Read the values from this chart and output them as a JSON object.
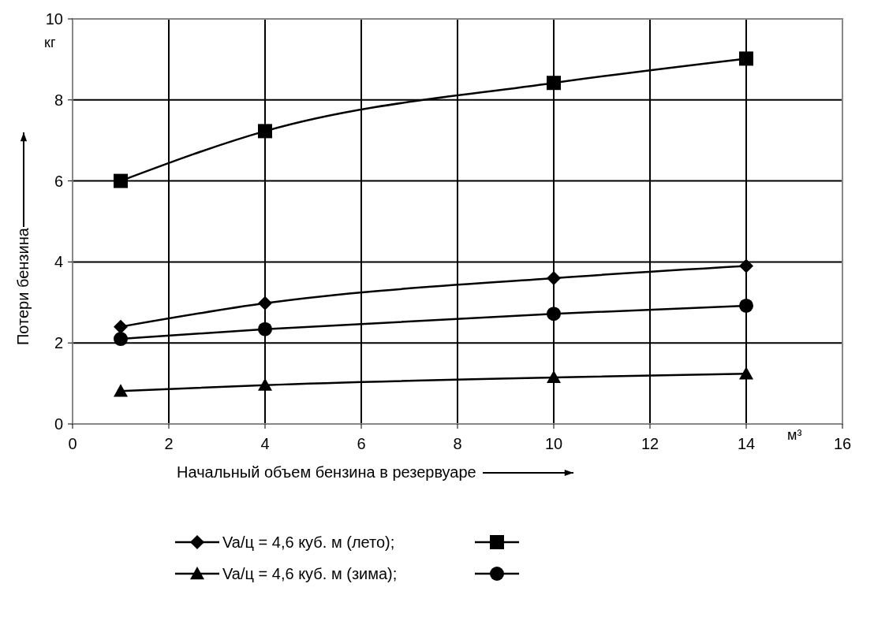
{
  "chart_data": {
    "type": "line",
    "xlabel": "Начальный объем бензина в резервуаре",
    "ylabel": "Потери бензина",
    "x": [
      1,
      4,
      10,
      14
    ],
    "series": [
      {
        "name": "Va/ц = 4,6 куб. м (лето);",
        "color": "#000000",
        "marker": "diamond",
        "values": [
          2.4,
          2.98,
          3.6,
          3.9
        ]
      },
      {
        "color": "#000000",
        "marker": "square",
        "values": [
          6.0,
          7.23,
          8.42,
          9.02
        ]
      },
      {
        "name": "Va/ц = 4,6 куб. м (зима);",
        "color": "#000000",
        "marker": "triangle",
        "values": [
          0.81,
          0.96,
          1.15,
          1.24
        ]
      },
      {
        "color": "#000000",
        "marker": "circle",
        "values": [
          2.1,
          2.34,
          2.72,
          2.92
        ]
      }
    ],
    "xlim": [
      0,
      16
    ],
    "xticks": [
      0,
      2,
      4,
      6,
      8,
      10,
      12,
      14,
      16
    ],
    "ylim": [
      0,
      10
    ],
    "yticks": [
      0,
      2,
      4,
      6,
      8,
      10
    ],
    "grid": true,
    "legend": "bottom",
    "line_style": "solid",
    "annotations": [
      "кг",
      "м³"
    ]
  }
}
